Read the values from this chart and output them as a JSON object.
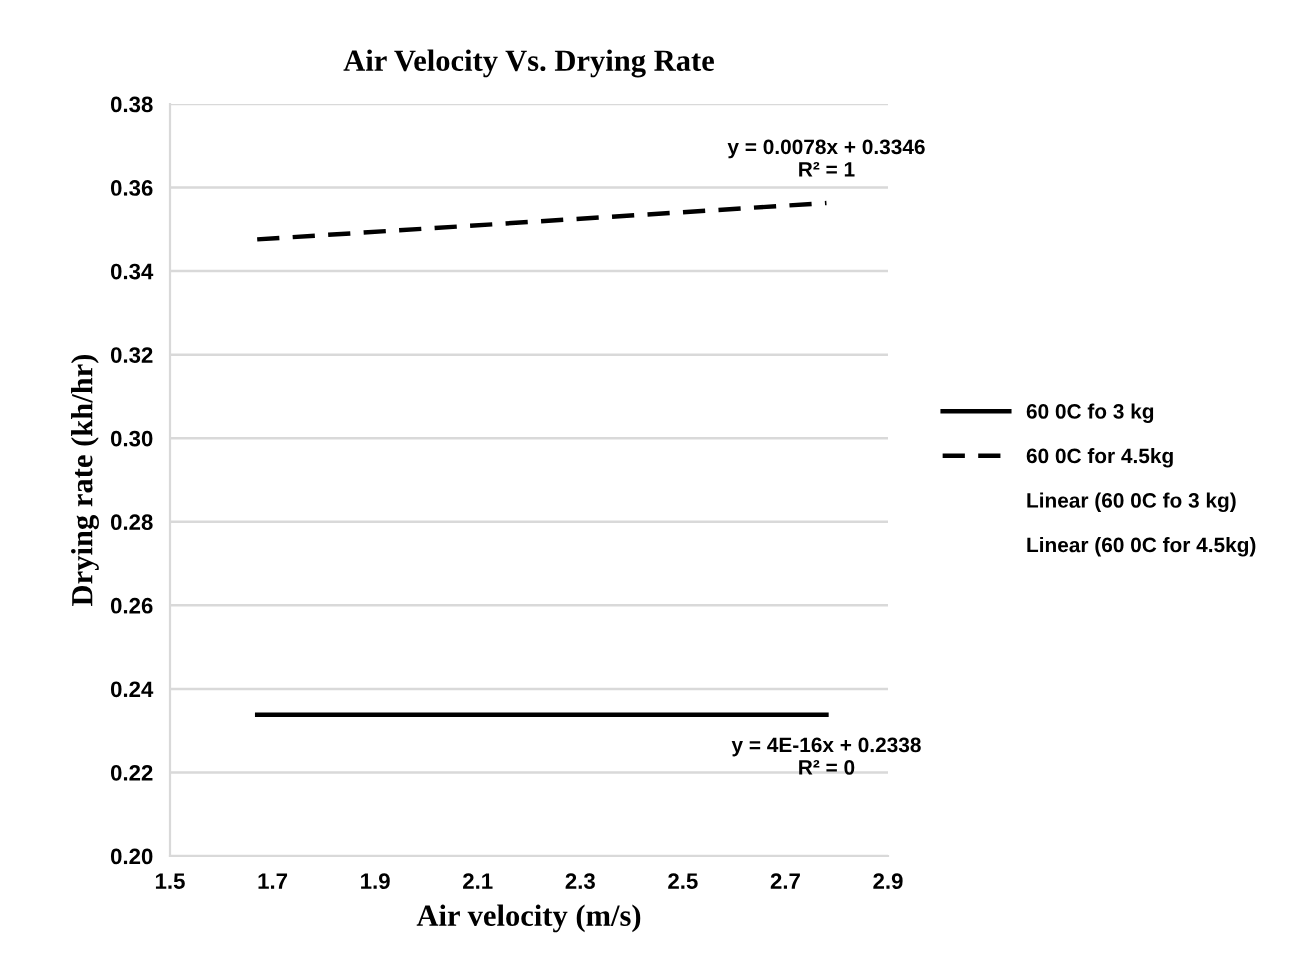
{
  "chart_data": {
    "type": "line",
    "title": "Air Velocity Vs. Drying Rate",
    "xlabel": "Air velocity (m/s)",
    "ylabel": "Drying rate (kh/hr)",
    "x": [
      1.67,
      2.78
    ],
    "series": [
      {
        "name": "60 0C fo 3 kg",
        "color": "#000000",
        "values": [
          0.2338,
          0.2338
        ],
        "line_style": "solid"
      },
      {
        "name": "60 0C for 4.5kg",
        "color": "#000000",
        "values": [
          0.3476,
          0.3563
        ],
        "line_style": "dashed"
      }
    ],
    "annotations": [
      {
        "text": "y = 0.0078x + 0.3346\nR² = 1",
        "x": 2.78,
        "y": 0.3563
      },
      {
        "text": "y = 4E-16x + 0.2338\nR² = 0",
        "x": 2.78,
        "y": 0.2338
      },
      "Linear (60 0C fo 3 kg)",
      "Linear (60 0C for 4.5kg)"
    ],
    "xlim": [
      1.5,
      2.9
    ],
    "xticks": [
      1.5,
      1.7,
      1.9,
      2.1,
      2.3,
      2.5,
      2.7,
      2.9
    ],
    "ylim": [
      0.2,
      0.38
    ],
    "yticks": [
      {
        "value": 0.2,
        "label": "0.20"
      },
      {
        "value": 0.22,
        "label": "0.22"
      },
      {
        "value": 0.24,
        "label": "0.24"
      },
      {
        "value": 0.26,
        "label": "0.26"
      },
      {
        "value": 0.28,
        "label": "0.28"
      },
      {
        "value": 0.3,
        "label": "0.30"
      },
      {
        "value": 0.32,
        "label": "0.32"
      },
      {
        "value": 0.34,
        "label": "0.34"
      },
      {
        "value": 0.36,
        "label": "0.36"
      },
      {
        "value": 0.38,
        "label": "0.38"
      }
    ],
    "grid": "y",
    "legend": "right",
    "marker": "none"
  }
}
